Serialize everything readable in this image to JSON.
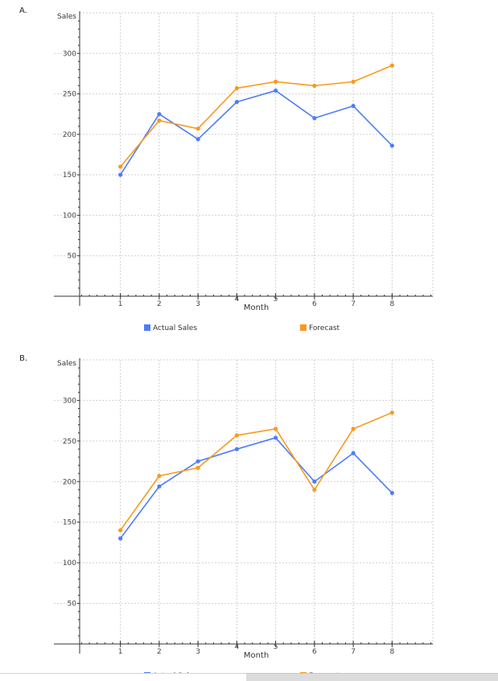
{
  "colors": {
    "actual": "#4f7df7",
    "forecast": "#f79a1e",
    "grid": "#d0d0d0",
    "axis": "#333333"
  },
  "chart_data": [
    {
      "type": "line",
      "panel_label": "A.",
      "xlabel": "Month",
      "ylabel": "Sales",
      "x": [
        1,
        2,
        3,
        4,
        5,
        6,
        7,
        8
      ],
      "xticks": [
        "1",
        "2",
        "3",
        "4",
        "5",
        "6",
        "7",
        "8"
      ],
      "yticks": [
        "50",
        "100",
        "150",
        "200",
        "250",
        "300"
      ],
      "xlim": [
        -0.05,
        9.05
      ],
      "ylim": [
        0,
        350
      ],
      "grid": true,
      "legend_position": "bottom",
      "series": [
        {
          "name": "Actual   Sales",
          "color_key": "actual",
          "values": [
            150,
            225,
            194,
            240,
            254,
            220,
            235,
            186
          ]
        },
        {
          "name": "Forecast",
          "color_key": "forecast",
          "values": [
            160,
            217,
            207,
            257,
            265,
            260,
            265,
            285
          ]
        }
      ]
    },
    {
      "type": "line",
      "panel_label": "B.",
      "xlabel": "Month",
      "ylabel": "Sales",
      "x": [
        1,
        2,
        3,
        4,
        5,
        6,
        7,
        8
      ],
      "xticks": [
        "1",
        "2",
        "3",
        "4",
        "5",
        "6",
        "7",
        "8"
      ],
      "yticks": [
        "50",
        "100",
        "150",
        "200",
        "250",
        "300"
      ],
      "xlim": [
        -0.05,
        9.05
      ],
      "ylim": [
        0,
        350
      ],
      "grid": true,
      "legend_position": "bottom",
      "series": [
        {
          "name": "Actual   Sales",
          "color_key": "actual",
          "values": [
            130,
            194,
            225,
            240,
            254,
            200,
            235,
            186
          ]
        },
        {
          "name": "Forecast",
          "color_key": "forecast",
          "values": [
            140,
            207,
            217,
            257,
            265,
            190,
            265,
            285
          ]
        }
      ]
    }
  ]
}
